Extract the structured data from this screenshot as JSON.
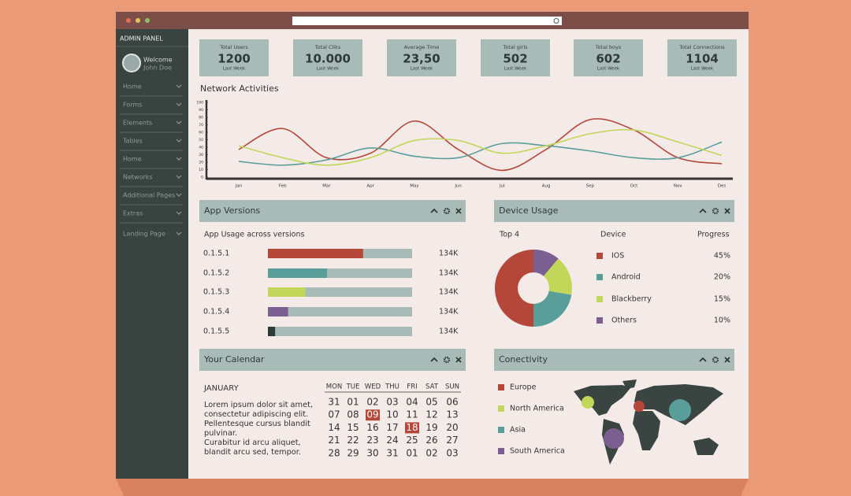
{
  "sidebar": {
    "title": "ADMIN PANEL",
    "welcome": "Welcome",
    "user": "John Doe",
    "menu": [
      "Home",
      "Forms",
      "Elements",
      "Tables",
      "Home",
      "Networks",
      "Additional Pages",
      "Extras",
      "Landing Page"
    ]
  },
  "stats": [
    {
      "label": "Total Users",
      "value": "1200",
      "sub": "Last Week"
    },
    {
      "label": "Total Cliks",
      "value": "10.000",
      "sub": "Last Week"
    },
    {
      "label": "Average Time",
      "value": "23,50",
      "sub": "Last Week"
    },
    {
      "label": "Total girls",
      "value": "502",
      "sub": "Last Week"
    },
    {
      "label": "Total boys",
      "value": "602",
      "sub": "Last Week"
    },
    {
      "label": "Total Connections",
      "value": "1104",
      "sub": "Last Week"
    }
  ],
  "network": {
    "type": "line",
    "title": "Network Activities",
    "categories": [
      "Jan",
      "Feb",
      "Mar",
      "Apr",
      "May",
      "Jun",
      "Jul",
      "Aug",
      "Sep",
      "Oct",
      "Nov",
      "Des"
    ],
    "ylim": [
      0,
      100
    ],
    "yticks": [
      0,
      10,
      20,
      30,
      40,
      50,
      60,
      70,
      80,
      90,
      100
    ],
    "series": [
      {
        "color": "#b5473a",
        "values": [
          37,
          65,
          26,
          32,
          75,
          37,
          9,
          37,
          77,
          63,
          26,
          18
        ]
      },
      {
        "color": "#5a9e9a",
        "values": [
          21,
          16,
          23,
          39,
          28,
          26,
          45,
          42,
          35,
          26,
          26,
          47
        ]
      },
      {
        "color": "#c2d65a",
        "values": [
          42,
          26,
          16,
          26,
          49,
          49,
          32,
          42,
          58,
          63,
          47,
          29
        ]
      }
    ]
  },
  "app_versions": {
    "title": "App Versions",
    "subtitle": "App Usage across versions",
    "progress_lim": [
      0,
      100
    ],
    "rows": [
      {
        "version": "0.1.5.1",
        "progress": 66,
        "color": "#b5473a",
        "label": "134K"
      },
      {
        "version": "0.1.5.2",
        "progress": 41,
        "color": "#5a9e9a",
        "label": "134K"
      },
      {
        "version": "0.1.5.3",
        "progress": 26,
        "color": "#c2d65a",
        "label": "134K"
      },
      {
        "version": "0.1.5.4",
        "progress": 14,
        "color": "#7c5f91",
        "label": "134K"
      },
      {
        "version": "0.1.5.5",
        "progress": 5,
        "color": "#2f3a37",
        "label": "134K"
      }
    ]
  },
  "device_usage": {
    "type": "pie",
    "title": "Device Usage",
    "headers": [
      "Top 4",
      "Device",
      "Progress"
    ],
    "categories": [
      "IOS",
      "Android",
      "Blackberry",
      "Others"
    ],
    "colors": [
      "#b5473a",
      "#5a9e9a",
      "#c2d65a",
      "#7c5f91"
    ],
    "values": [
      45,
      20,
      15,
      10
    ],
    "value_labels": [
      "45%",
      "20%",
      "15%",
      "10%"
    ]
  },
  "calendar": {
    "title": "Your Calendar",
    "month": "JANUARY",
    "text": [
      "Lorem ipsum dolor sit amet,",
      "consectetur adipiscing elit.",
      "Pellentesque cursus blandit",
      "pulvinar.",
      "Curabitur id arcu aliquet,",
      "blandit arcu sed, tempor."
    ],
    "weekdays": [
      "MON",
      "TUE",
      "WED",
      "THU",
      "FRI",
      "SAT",
      "SUN"
    ],
    "weeks": [
      [
        "31",
        "01",
        "02",
        "03",
        "04",
        "05",
        "06"
      ],
      [
        "07",
        "08",
        "09",
        "10",
        "11",
        "12",
        "13"
      ],
      [
        "14",
        "15",
        "16",
        "17",
        "18",
        "19",
        "20"
      ],
      [
        "21",
        "22",
        "23",
        "24",
        "25",
        "26",
        "27"
      ],
      [
        "28",
        "29",
        "30",
        "31",
        "01",
        "02",
        "03"
      ]
    ],
    "highlight": [
      [
        1,
        2
      ],
      [
        2,
        4
      ]
    ]
  },
  "connectivity": {
    "title": "Conectivity",
    "regions": [
      {
        "name": "Europe",
        "color": "#b5473a"
      },
      {
        "name": "North America",
        "color": "#c2d65a"
      },
      {
        "name": "Asia",
        "color": "#5a9e9a"
      },
      {
        "name": "South America",
        "color": "#7c5f91"
      }
    ]
  }
}
